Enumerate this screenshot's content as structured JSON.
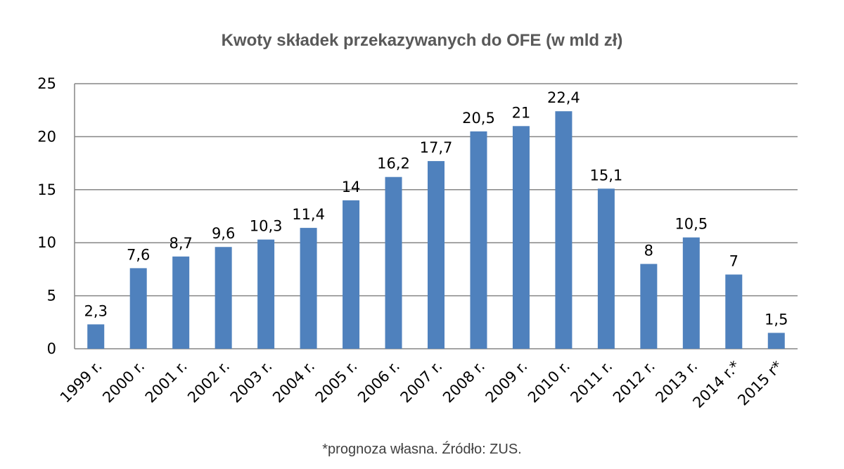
{
  "chart_data": {
    "type": "bar",
    "title": "Kwoty składek przekazywanych do OFE (w mld zł)",
    "categories": [
      "1999 r.",
      "2000 r.",
      "2001 r.",
      "2002 r.",
      "2003 r.",
      "2004 r.",
      "2005 r.",
      "2006 r.",
      "2007 r.",
      "2008 r.",
      "2009 r.",
      "2010 r.",
      "2011 r.",
      "2012 r.",
      "2013 r.",
      "2014 r.*",
      "2015 r*"
    ],
    "values": [
      2.3,
      7.6,
      8.7,
      9.6,
      10.3,
      11.4,
      14,
      16.2,
      17.7,
      20.5,
      21,
      22.4,
      15.1,
      8,
      10.5,
      7,
      1.5
    ],
    "data_labels": [
      "2,3",
      "7,6",
      "8,7",
      "9,6",
      "10,3",
      "11,4",
      "14",
      "16,2",
      "17,7",
      "20,5",
      "21",
      "22,4",
      "15,1",
      "8",
      "10,5",
      "7",
      "1,5"
    ],
    "yticks": [
      "0",
      "5",
      "10",
      "15",
      "20",
      "25"
    ],
    "ylim": [
      0,
      25
    ],
    "grid": true,
    "legend": "none",
    "bar_color": "#4F81BD",
    "grid_color": "#868686"
  },
  "footnote": "*prognoza własna. Źródło: ZUS."
}
